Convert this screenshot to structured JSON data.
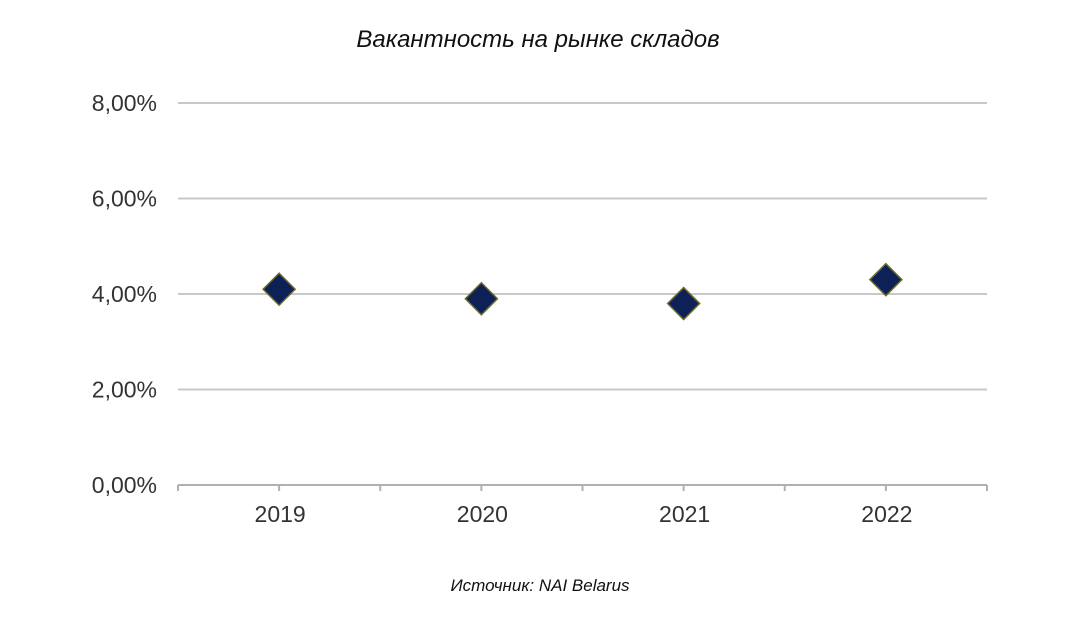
{
  "chart_data": {
    "type": "scatter",
    "title": "Вакантность на рынке складов",
    "source": "Источник: NAI Belarus",
    "categories": [
      "2019",
      "2020",
      "2021",
      "2022"
    ],
    "values": [
      4.1,
      3.9,
      3.8,
      4.3
    ],
    "y_ticks": [
      {
        "value": 0,
        "label": "0,00%"
      },
      {
        "value": 2,
        "label": "2,00%"
      },
      {
        "value": 4,
        "label": "4,00%"
      },
      {
        "value": 6,
        "label": "6,00%"
      },
      {
        "value": 8,
        "label": "8,00%"
      }
    ],
    "ylim": [
      0,
      8
    ],
    "xlabel": "",
    "ylabel": "",
    "grid": true,
    "legend": "none",
    "marker": "diamond",
    "colors": {
      "marker_fill": "#0d2157",
      "marker_stroke": "#6b6a2e",
      "grid": "#c8c8c8",
      "axis": "#b0b0b0"
    }
  }
}
